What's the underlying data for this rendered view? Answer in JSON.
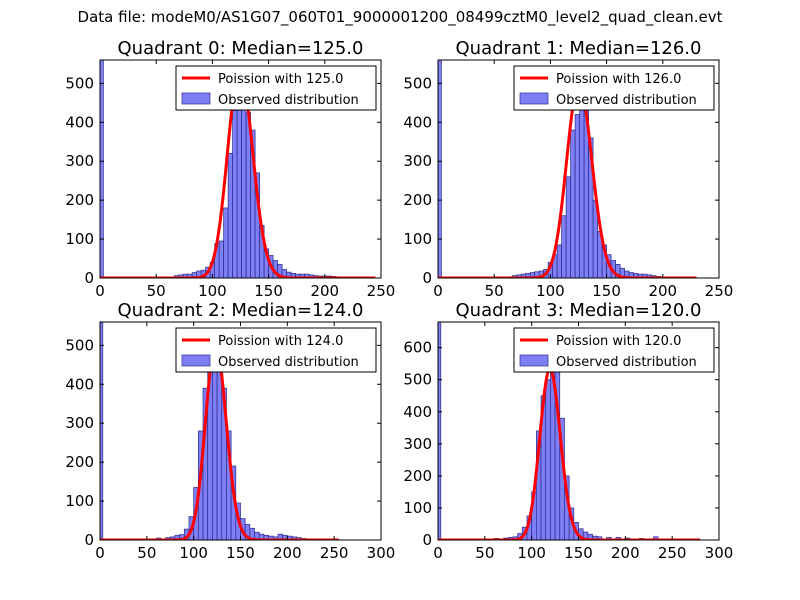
{
  "figure_title": "Data file: modeM0/AS1G07_060T01_9000001200_08499cztM0_level2_quad_clean.evt",
  "chart_data": [
    {
      "type": "bar",
      "title": "Quadrant 0: Median=125.0",
      "median": 125.0,
      "xlim": [
        0,
        250
      ],
      "ylim": [
        0,
        560
      ],
      "xticks": [
        0,
        50,
        100,
        150,
        200,
        250
      ],
      "yticks": [
        0,
        100,
        200,
        300,
        400,
        500
      ],
      "bins": [
        [
          0,
          3,
          560
        ],
        [
          66,
          70,
          6
        ],
        [
          70,
          74,
          8
        ],
        [
          74,
          78,
          10
        ],
        [
          78,
          82,
          10
        ],
        [
          82,
          86,
          14
        ],
        [
          86,
          90,
          18
        ],
        [
          90,
          94,
          20
        ],
        [
          94,
          98,
          28
        ],
        [
          98,
          102,
          40
        ],
        [
          102,
          106,
          88
        ],
        [
          106,
          110,
          95
        ],
        [
          110,
          114,
          180
        ],
        [
          114,
          118,
          320
        ],
        [
          118,
          122,
          430
        ],
        [
          122,
          126,
          470
        ],
        [
          126,
          130,
          465
        ],
        [
          130,
          134,
          425
        ],
        [
          134,
          138,
          380
        ],
        [
          138,
          142,
          270
        ],
        [
          142,
          146,
          135
        ],
        [
          146,
          150,
          75
        ],
        [
          150,
          154,
          58
        ],
        [
          154,
          158,
          45
        ],
        [
          158,
          162,
          35
        ],
        [
          162,
          166,
          22
        ],
        [
          166,
          170,
          15
        ],
        [
          170,
          174,
          12
        ],
        [
          174,
          178,
          10
        ],
        [
          178,
          182,
          10
        ],
        [
          182,
          186,
          10
        ],
        [
          186,
          190,
          8
        ],
        [
          190,
          194,
          6
        ],
        [
          194,
          198,
          5
        ],
        [
          198,
          202,
          5
        ],
        [
          202,
          206,
          5
        ],
        [
          206,
          210,
          4
        ],
        [
          210,
          214,
          3
        ],
        [
          214,
          218,
          2
        ],
        [
          218,
          222,
          2
        ],
        [
          222,
          226,
          2
        ],
        [
          226,
          230,
          2
        ],
        [
          230,
          234,
          2
        ],
        [
          234,
          238,
          1
        ],
        [
          238,
          242,
          1
        ]
      ],
      "poisson_range": [
        0,
        245
      ],
      "legend": [
        "Poission with 125.0",
        "Observed distribution"
      ],
      "legend_position": "top-right"
    },
    {
      "type": "bar",
      "title": "Quadrant 1: Median=126.0",
      "median": 126.0,
      "xlim": [
        0,
        250
      ],
      "ylim": [
        0,
        560
      ],
      "xticks": [
        0,
        50,
        100,
        150,
        200,
        250
      ],
      "yticks": [
        0,
        100,
        200,
        300,
        400,
        500
      ],
      "bins": [
        [
          0,
          3,
          560
        ],
        [
          66,
          70,
          6
        ],
        [
          70,
          74,
          8
        ],
        [
          74,
          78,
          10
        ],
        [
          78,
          82,
          12
        ],
        [
          82,
          86,
          14
        ],
        [
          86,
          90,
          16
        ],
        [
          90,
          94,
          18
        ],
        [
          94,
          98,
          22
        ],
        [
          98,
          102,
          40
        ],
        [
          102,
          106,
          60
        ],
        [
          106,
          110,
          85
        ],
        [
          110,
          114,
          160
        ],
        [
          114,
          118,
          260
        ],
        [
          118,
          122,
          380
        ],
        [
          122,
          126,
          420
        ],
        [
          126,
          130,
          520
        ],
        [
          130,
          134,
          440
        ],
        [
          134,
          138,
          360
        ],
        [
          138,
          142,
          200
        ],
        [
          142,
          146,
          120
        ],
        [
          146,
          150,
          85
        ],
        [
          150,
          154,
          60
        ],
        [
          154,
          158,
          45
        ],
        [
          158,
          162,
          35
        ],
        [
          162,
          166,
          25
        ],
        [
          166,
          170,
          18
        ],
        [
          170,
          174,
          14
        ],
        [
          174,
          178,
          12
        ],
        [
          178,
          182,
          10
        ],
        [
          182,
          186,
          10
        ],
        [
          186,
          190,
          8
        ],
        [
          190,
          194,
          6
        ],
        [
          194,
          198,
          4
        ],
        [
          198,
          202,
          3
        ],
        [
          202,
          206,
          3
        ],
        [
          206,
          210,
          2
        ],
        [
          210,
          214,
          2
        ],
        [
          214,
          218,
          2
        ],
        [
          218,
          222,
          1
        ],
        [
          222,
          226,
          1
        ]
      ],
      "poisson_range": [
        0,
        230
      ],
      "legend": [
        "Poission with 126.0",
        "Observed distribution"
      ],
      "legend_position": "top-right"
    },
    {
      "type": "bar",
      "title": "Quadrant 2: Median=124.0",
      "median": 124.0,
      "xlim": [
        0,
        300
      ],
      "ylim": [
        0,
        560
      ],
      "xticks": [
        0,
        50,
        100,
        150,
        200,
        250,
        300
      ],
      "yticks": [
        0,
        100,
        200,
        300,
        400,
        500
      ],
      "bins": [
        [
          0,
          3,
          560
        ],
        [
          60,
          65,
          5
        ],
        [
          70,
          75,
          6
        ],
        [
          75,
          80,
          8
        ],
        [
          80,
          85,
          12
        ],
        [
          85,
          90,
          14
        ],
        [
          90,
          95,
          28
        ],
        [
          95,
          100,
          60
        ],
        [
          100,
          105,
          135
        ],
        [
          105,
          110,
          280
        ],
        [
          110,
          115,
          390
        ],
        [
          115,
          120,
          430
        ],
        [
          120,
          125,
          460
        ],
        [
          125,
          130,
          455
        ],
        [
          130,
          135,
          390
        ],
        [
          135,
          140,
          280
        ],
        [
          140,
          145,
          190
        ],
        [
          145,
          150,
          95
        ],
        [
          150,
          155,
          55
        ],
        [
          155,
          160,
          40
        ],
        [
          160,
          165,
          30
        ],
        [
          165,
          170,
          20
        ],
        [
          170,
          175,
          15
        ],
        [
          175,
          180,
          12
        ],
        [
          180,
          185,
          10
        ],
        [
          185,
          190,
          8
        ],
        [
          190,
          195,
          15
        ],
        [
          195,
          200,
          12
        ],
        [
          200,
          205,
          10
        ],
        [
          205,
          210,
          8
        ],
        [
          210,
          215,
          6
        ],
        [
          215,
          220,
          4
        ],
        [
          220,
          225,
          3
        ],
        [
          225,
          230,
          2
        ],
        [
          230,
          235,
          2
        ],
        [
          235,
          240,
          1
        ],
        [
          240,
          245,
          1
        ]
      ],
      "poisson_range": [
        0,
        255
      ],
      "legend": [
        "Poission with 124.0",
        "Observed distribution"
      ],
      "legend_position": "top-right"
    },
    {
      "type": "bar",
      "title": "Quadrant 3: Median=120.0",
      "median": 120.0,
      "xlim": [
        0,
        300
      ],
      "ylim": [
        0,
        680
      ],
      "xticks": [
        0,
        50,
        100,
        150,
        200,
        250,
        300
      ],
      "yticks": [
        0,
        100,
        200,
        300,
        400,
        500,
        600
      ],
      "bins": [
        [
          0,
          3,
          680
        ],
        [
          60,
          65,
          5
        ],
        [
          70,
          75,
          6
        ],
        [
          75,
          80,
          8
        ],
        [
          80,
          85,
          10
        ],
        [
          85,
          90,
          20
        ],
        [
          90,
          95,
          40
        ],
        [
          95,
          100,
          75
        ],
        [
          100,
          105,
          150
        ],
        [
          105,
          110,
          340
        ],
        [
          110,
          115,
          450
        ],
        [
          115,
          120,
          500
        ],
        [
          120,
          125,
          610
        ],
        [
          125,
          130,
          570
        ],
        [
          130,
          135,
          380
        ],
        [
          135,
          140,
          200
        ],
        [
          140,
          145,
          100
        ],
        [
          145,
          150,
          55
        ],
        [
          150,
          155,
          35
        ],
        [
          155,
          160,
          25
        ],
        [
          160,
          165,
          18
        ],
        [
          165,
          170,
          12
        ],
        [
          170,
          175,
          10
        ],
        [
          180,
          185,
          8
        ],
        [
          190,
          195,
          8
        ],
        [
          200,
          205,
          6
        ],
        [
          215,
          220,
          5
        ],
        [
          230,
          235,
          10
        ],
        [
          240,
          245,
          3
        ]
      ],
      "poisson_range": [
        0,
        280
      ],
      "legend": [
        "Poission with 120.0",
        "Observed distribution"
      ],
      "legend_position": "top-right"
    }
  ]
}
